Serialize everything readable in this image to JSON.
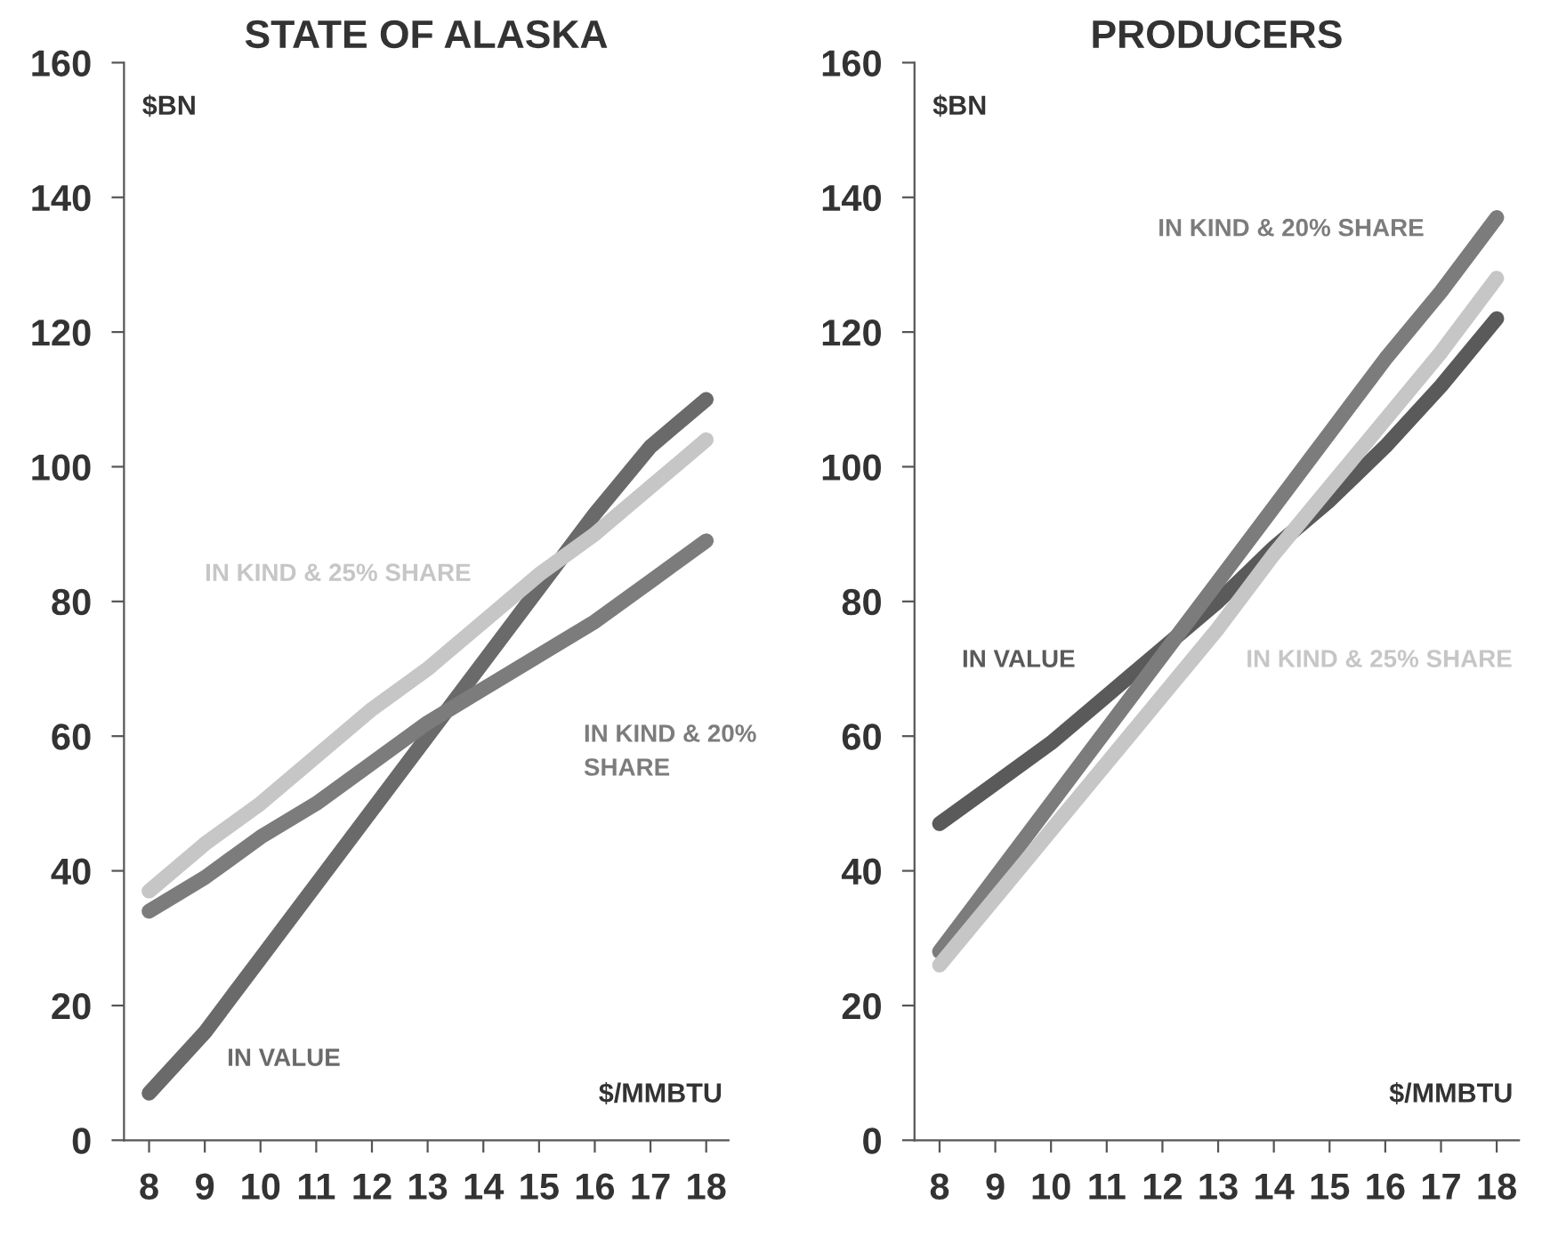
{
  "chart_data": [
    {
      "type": "line",
      "title": "STATE OF ALASKA",
      "xlabel": "$/MMBTU",
      "ylabel": "$BN",
      "categories": [
        "8",
        "9",
        "10",
        "11",
        "12",
        "13",
        "14",
        "15",
        "16",
        "17",
        "18"
      ],
      "ylim": [
        0,
        160
      ],
      "yticks": [
        0,
        20,
        40,
        60,
        80,
        100,
        120,
        140,
        160
      ],
      "grid": false,
      "legend": false,
      "marker": "none",
      "line_style": "solid",
      "series": [
        {
          "name": "IN VALUE",
          "color": "#6a6a6a",
          "values": [
            7,
            16,
            27,
            38,
            49,
            60,
            71,
            82,
            93,
            103,
            110
          ]
        },
        {
          "name": "IN KIND & 20% SHARE",
          "color": "#7c7c7c",
          "values": [
            34,
            39,
            45,
            50,
            56,
            62,
            67,
            72,
            77,
            83,
            89
          ]
        },
        {
          "name": "IN KIND & 25% SHARE",
          "color": "#c6c6c6",
          "values": [
            37,
            44,
            50,
            57,
            64,
            70,
            77,
            84,
            90,
            97,
            104
          ]
        }
      ]
    },
    {
      "type": "line",
      "title": "PRODUCERS",
      "xlabel": "$/MMBTU",
      "ylabel": "$BN",
      "categories": [
        "8",
        "9",
        "10",
        "11",
        "12",
        "13",
        "14",
        "15",
        "16",
        "17",
        "18"
      ],
      "ylim": [
        0,
        160
      ],
      "yticks": [
        0,
        20,
        40,
        60,
        80,
        100,
        120,
        140,
        160
      ],
      "grid": false,
      "legend": false,
      "marker": "none",
      "line_style": "solid",
      "series": [
        {
          "name": "IN VALUE",
          "color": "#5a5a5a",
          "values": [
            47,
            53,
            59,
            66,
            73,
            80,
            88,
            95,
            103,
            112,
            122
          ]
        },
        {
          "name": "IN KIND & 20% SHARE",
          "color": "#7c7c7c",
          "values": [
            28,
            39,
            50,
            61,
            72,
            83,
            94,
            105,
            116,
            126,
            137
          ]
        },
        {
          "name": "IN KIND & 25% SHARE",
          "color": "#c6c6c6",
          "values": [
            26,
            36,
            46,
            56,
            66,
            76,
            87,
            97,
            107,
            117,
            128
          ]
        }
      ]
    }
  ]
}
